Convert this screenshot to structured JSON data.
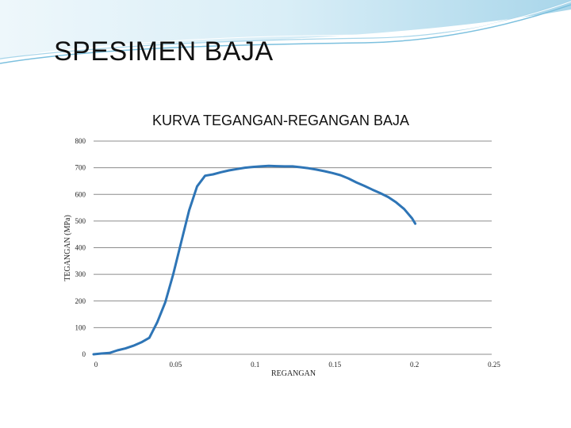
{
  "slide": {
    "title": "SPESIMEN BAJA",
    "theme_colors": {
      "header_light": "#d9eef7",
      "header_mid": "#a9d6ea",
      "header_dark": "#7cc0de"
    }
  },
  "chart_data": {
    "type": "line",
    "title": "KURVA TEGANGAN-REGANGAN BAJA",
    "xlabel": "REGANGAN",
    "ylabel": "TEGANGAN (MPa)",
    "xlim": [
      0,
      0.25
    ],
    "ylim": [
      0,
      800
    ],
    "xticks": [
      0,
      0.05,
      0.1,
      0.15,
      0.2,
      0.25
    ],
    "xtick_labels": [
      "0",
      "0.05",
      "0.1",
      "0.15",
      "0.2",
      "0.25"
    ],
    "yticks": [
      0,
      100,
      200,
      300,
      400,
      500,
      600,
      700,
      800
    ],
    "ytick_labels": [
      "0",
      "100",
      "200",
      "300",
      "400",
      "500",
      "600",
      "700",
      "800"
    ],
    "grid": true,
    "legend": "none",
    "line_color": "#2e75b6",
    "series": [
      {
        "x": [
          0,
          0.005,
          0.01,
          0.015,
          0.02,
          0.025,
          0.03,
          0.035,
          0.04,
          0.045,
          0.05,
          0.055,
          0.06,
          0.065,
          0.07,
          0.075,
          0.08,
          0.085,
          0.09,
          0.095,
          0.1,
          0.105,
          0.11,
          0.115,
          0.12,
          0.125,
          0.13,
          0.135,
          0.14,
          0.145,
          0.15,
          0.155,
          0.16,
          0.165,
          0.17,
          0.175,
          0.18,
          0.185,
          0.19,
          0.195,
          0.2,
          0.202
        ],
        "y": [
          0,
          3,
          5,
          15,
          22,
          32,
          45,
          62,
          120,
          195,
          300,
          420,
          540,
          630,
          670,
          675,
          683,
          690,
          695,
          700,
          703,
          705,
          707,
          706,
          705,
          705,
          702,
          698,
          693,
          687,
          680,
          672,
          660,
          645,
          632,
          618,
          605,
          590,
          570,
          545,
          510,
          490
        ]
      }
    ]
  }
}
